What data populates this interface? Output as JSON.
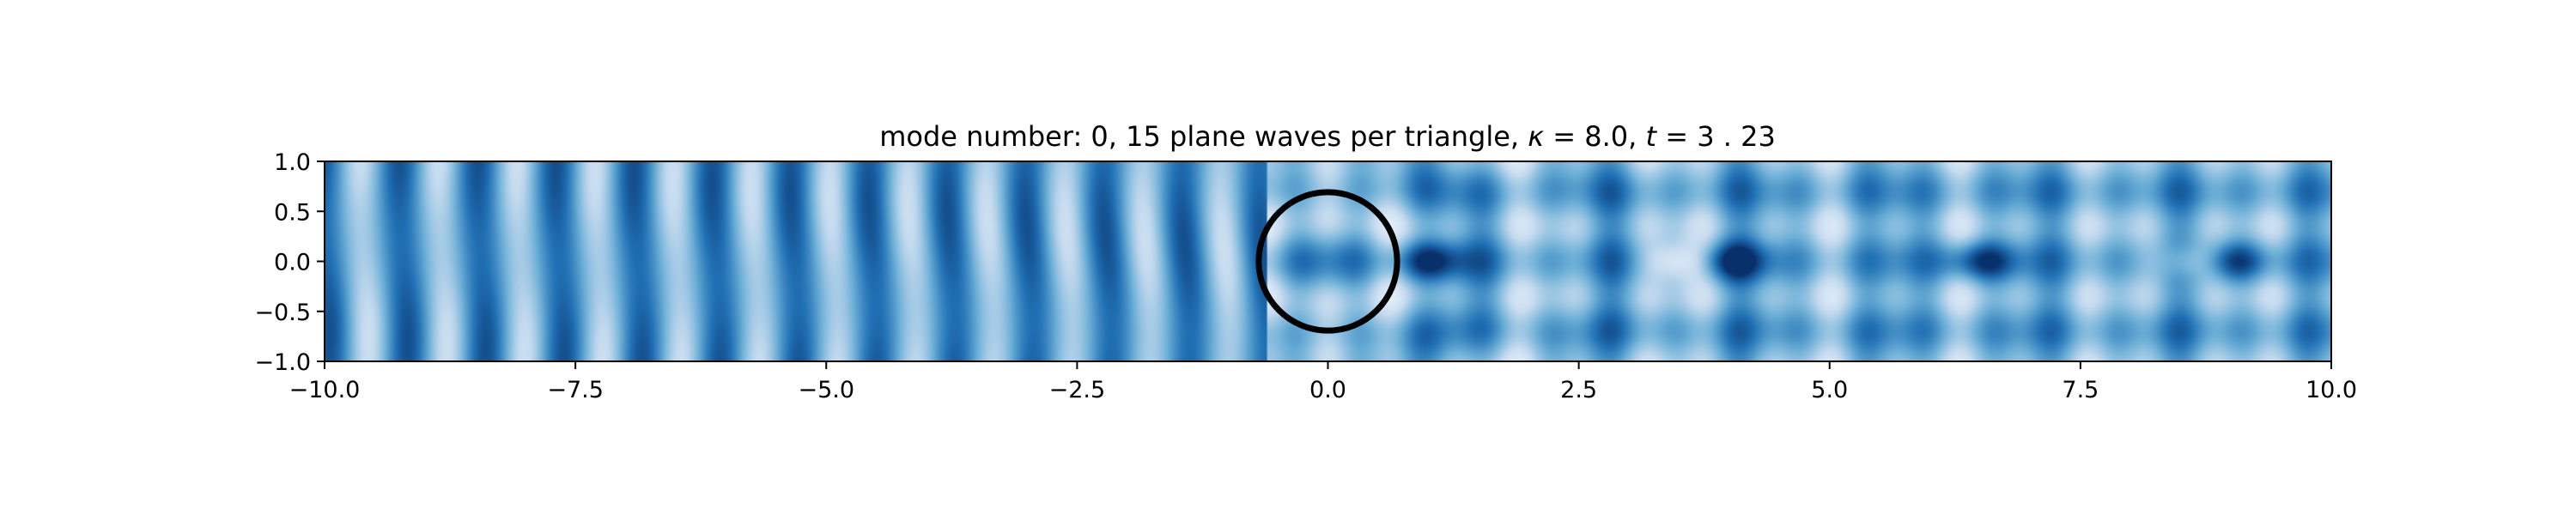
{
  "chart_data": {
    "type": "heatmap",
    "title_parts": {
      "prefix": "mode number: 0, 15 plane waves per triangle, ",
      "kappa_symbol": "κ",
      "kappa_value": " = 8.0, ",
      "t_symbol": "t",
      "t_value": " = 3 . 23"
    },
    "xlim": [
      -10.0,
      10.0
    ],
    "ylim": [
      -1.0,
      1.0
    ],
    "xticks": [
      -10.0,
      -7.5,
      -5.0,
      -2.5,
      0.0,
      2.5,
      5.0,
      7.5,
      10.0
    ],
    "xtick_labels": [
      "−10.0",
      "−7.5",
      "−5.0",
      "−2.5",
      "0.0",
      "2.5",
      "5.0",
      "7.5",
      "10.0"
    ],
    "yticks": [
      1.0,
      0.5,
      0.0,
      -0.5,
      -1.0
    ],
    "ytick_labels": [
      "1.0",
      "0.5",
      "0.0",
      "−0.5",
      "−1.0"
    ],
    "colormap": "Blues",
    "colormap_colors": [
      "#f7fbff",
      "#c6dbef",
      "#6baed6",
      "#2171b5",
      "#08306b"
    ],
    "scatterer": {
      "shape": "circle",
      "center_x": 0.0,
      "center_y": 0.0,
      "radius": 0.6,
      "color": "#000000"
    },
    "wave_field": {
      "incident_wavelength": 0.78,
      "peaks_right": [
        {
          "x": 1.0,
          "y": 0.0,
          "kind": "dark"
        },
        {
          "x": 3.5,
          "y": 0.0,
          "kind": "light"
        },
        {
          "x": 4.0,
          "y": 0.0,
          "kind": "dark"
        },
        {
          "x": 6.5,
          "y": 0.0,
          "kind": "dark"
        },
        {
          "x": 8.6,
          "y": 0.0,
          "kind": "light"
        },
        {
          "x": 9.0,
          "y": 0.0,
          "kind": "dark"
        }
      ]
    },
    "grid": false,
    "legend": "none"
  }
}
